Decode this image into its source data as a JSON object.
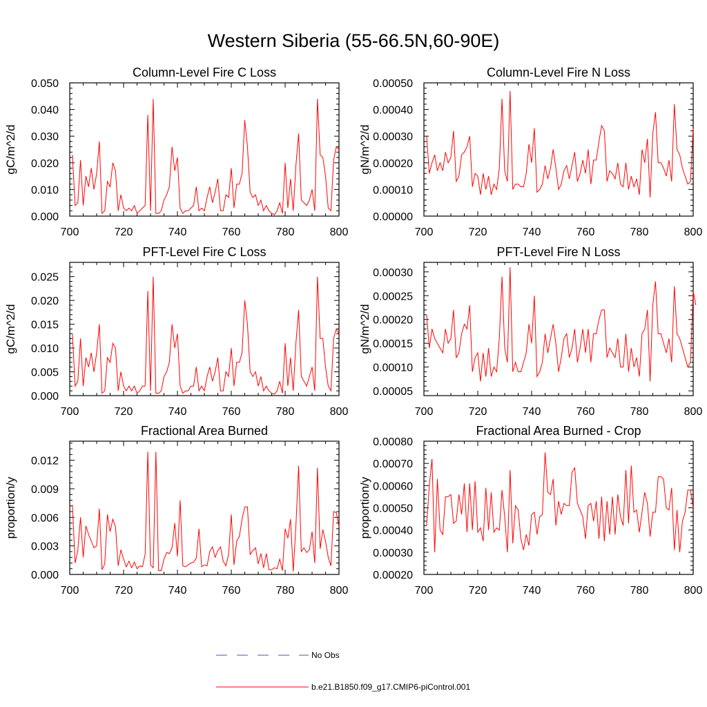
{
  "title": "Western Siberia (55-66.5N,60-90E)",
  "legend": {
    "entries": [
      {
        "label": "No Obs",
        "color": "#5050a0",
        "style": "dashed"
      },
      {
        "label": "b.e21.B1850.f09_g17.CMIP6-piControl.001",
        "color": "#ff0000",
        "style": "solid"
      }
    ]
  },
  "chart_data": [
    {
      "type": "line",
      "title": "Column-Level Fire C Loss",
      "ylabel": "gC/m^2/d",
      "xlim": [
        700,
        800
      ],
      "ylim": [
        0,
        0.05
      ],
      "xticks": [
        "700",
        "720",
        "740",
        "760",
        "780",
        "800"
      ],
      "yticks": [
        "0.000",
        "0.010",
        "0.020",
        "0.030",
        "0.040",
        "0.050"
      ],
      "series": [
        {
          "color": "#ff0000",
          "x0": 701,
          "values": [
            0.023,
            0.004,
            0.005,
            0.021,
            0.004,
            0.015,
            0.011,
            0.018,
            0.01,
            0.016,
            0.028,
            0.001,
            0.002,
            0.013,
            0.011,
            0.02,
            0.017,
            0.002,
            0.008,
            0.003,
            0.002,
            0.003,
            0.002,
            0.004,
            0.001,
            0.002,
            0.003,
            0.004,
            0.038,
            0.002,
            0.044,
            0.001,
            0.001,
            0.002,
            0.006,
            0.008,
            0.011,
            0.026,
            0.017,
            0.022,
            0.003,
            0.001,
            0.002,
            0.002,
            0.003,
            0.004,
            0.011,
            0.002,
            0.003,
            0.002,
            0.007,
            0.011,
            0.005,
            0.009,
            0.014,
            0.002,
            0.002,
            0.008,
            0.007,
            0.018,
            0.003,
            0.012,
            0.012,
            0.016,
            0.036,
            0.026,
            0.009,
            0.007,
            0.008,
            0.004,
            0.006,
            0.002,
            0.004,
            0.002,
            0.001,
            0.0005,
            0.002,
            0.005,
            0.001,
            0.02,
            0.003,
            0.014,
            0.002,
            0.019,
            0.031,
            0.006,
            0.005,
            0.004,
            0.006,
            0.01,
            0.002,
            0.044,
            0.023,
            0.022,
            0.015,
            0.003,
            0.002,
            0.021,
            0.026,
            0.025
          ]
        }
      ]
    },
    {
      "type": "line",
      "title": "Column-Level Fire N Loss",
      "ylabel": "gN/m^2/d",
      "xlim": [
        700,
        800
      ],
      "ylim": [
        0,
        0.0005
      ],
      "xticks": [
        "700",
        "720",
        "740",
        "760",
        "780",
        "800"
      ],
      "yticks": [
        "0.00000",
        "0.00010",
        "0.00020",
        "0.00030",
        "0.00040",
        "0.00050"
      ],
      "series": [
        {
          "color": "#ff0000",
          "x0": 701,
          "values": [
            0.0003,
            0.00016,
            0.0002,
            0.00023,
            0.00017,
            0.0002,
            0.00017,
            0.00024,
            0.0002,
            0.00022,
            0.00032,
            0.00013,
            0.00015,
            0.00023,
            0.00024,
            0.00026,
            0.0003,
            0.00011,
            0.00016,
            0.00015,
            8e-05,
            0.00016,
            0.0001,
            0.00015,
            8e-05,
            0.00012,
            0.0001,
            0.00018,
            0.00044,
            0.00017,
            0.00013,
            0.00047,
            0.0001,
            0.00012,
            0.00012,
            0.00011,
            0.00011,
            0.00016,
            0.00027,
            0.0002,
            0.00033,
            9e-05,
            0.0001,
            0.00012,
            0.00019,
            0.00014,
            0.00018,
            0.00025,
            0.00018,
            0.0001,
            0.00012,
            0.00017,
            0.00019,
            0.00014,
            0.00019,
            0.00024,
            0.00013,
            0.00016,
            0.00021,
            0.00016,
            0.00025,
            0.00012,
            0.00021,
            0.00021,
            0.00028,
            0.00034,
            0.00032,
            0.00013,
            0.00017,
            0.00016,
            0.00014,
            0.0002,
            0.00012,
            0.00011,
            0.0002,
            0.0001,
            0.00015,
            0.00011,
            0.00014,
            8e-05,
            0.00025,
            0.0002,
            0.00029,
            7e-05,
            0.00031,
            0.00039,
            0.0002,
            0.0002,
            0.00018,
            0.00015,
            0.00021,
            0.00013,
            0.00042,
            0.00025,
            0.00023,
            0.00018,
            0.00015,
            0.00012,
            0.00013,
            0.00033
          ]
        }
      ]
    },
    {
      "type": "line",
      "title": "PFT-Level Fire C Loss",
      "ylabel": "gC/m^2/d",
      "xlim": [
        700,
        800
      ],
      "ylim": [
        0,
        0.028
      ],
      "xticks": [
        "700",
        "720",
        "740",
        "760",
        "780",
        "800"
      ],
      "yticks": [
        "0.000",
        "0.005",
        "0.010",
        "0.015",
        "0.020",
        "0.025"
      ],
      "series": [
        {
          "color": "#ff0000",
          "x0": 701,
          "values": [
            0.013,
            0.002,
            0.003,
            0.012,
            0.002,
            0.008,
            0.006,
            0.009,
            0.005,
            0.009,
            0.015,
            0.0005,
            0.001,
            0.008,
            0.007,
            0.011,
            0.01,
            0.001,
            0.005,
            0.002,
            0.001,
            0.002,
            0.001,
            0.002,
            0.0005,
            0.001,
            0.002,
            0.002,
            0.022,
            0.001,
            0.025,
            0.0005,
            0.0005,
            0.001,
            0.004,
            0.005,
            0.007,
            0.015,
            0.01,
            0.013,
            0.002,
            0.0005,
            0.001,
            0.001,
            0.002,
            0.002,
            0.006,
            0.001,
            0.002,
            0.001,
            0.004,
            0.006,
            0.003,
            0.005,
            0.008,
            0.001,
            0.001,
            0.005,
            0.004,
            0.01,
            0.002,
            0.007,
            0.007,
            0.009,
            0.02,
            0.015,
            0.005,
            0.004,
            0.005,
            0.002,
            0.004,
            0.001,
            0.002,
            0.001,
            0.0005,
            0.0003,
            0.001,
            0.003,
            0.0005,
            0.011,
            0.002,
            0.008,
            0.001,
            0.011,
            0.018,
            0.004,
            0.003,
            0.002,
            0.004,
            0.006,
            0.001,
            0.025,
            0.012,
            0.012,
            0.006,
            0.002,
            0.001,
            0.012,
            0.014,
            0.013
          ]
        }
      ]
    },
    {
      "type": "line",
      "title": "PFT-Level Fire N Loss",
      "ylabel": "gN/m^2/d",
      "xlim": [
        700,
        800
      ],
      "ylim": [
        4e-05,
        0.00032
      ],
      "xticks": [
        "700",
        "720",
        "740",
        "760",
        "780",
        "800"
      ],
      "yticks": [
        "0.00005",
        "0.00010",
        "0.00015",
        "0.00020",
        "0.00025",
        "0.00030"
      ],
      "series": [
        {
          "color": "#ff0000",
          "x0": 701,
          "values": [
            0.00021,
            0.00014,
            0.00018,
            0.00016,
            0.00015,
            0.00014,
            0.00013,
            0.00018,
            0.00015,
            0.00016,
            0.00022,
            0.00012,
            0.00013,
            0.00017,
            0.00019,
            0.00018,
            0.00023,
            9e-05,
            0.00012,
            0.00013,
            7e-05,
            0.00013,
            8e-05,
            0.00014,
            8e-05,
            0.0001,
            9e-05,
            0.00016,
            0.00029,
            0.00014,
            0.00011,
            0.00031,
            9e-05,
            0.00011,
            9e-05,
            9e-05,
            0.00011,
            0.00013,
            0.00019,
            0.00015,
            0.00025,
            8e-05,
            9e-05,
            0.00011,
            0.00017,
            0.00013,
            0.00016,
            0.00019,
            0.00015,
            9e-05,
            0.00012,
            0.00016,
            0.00017,
            0.00012,
            0.00014,
            0.00018,
            0.00011,
            0.00014,
            0.00018,
            0.00013,
            0.00018,
            0.00011,
            0.00017,
            0.00017,
            0.0002,
            0.00022,
            0.00022,
            0.00012,
            0.00014,
            0.00013,
            0.00012,
            0.00016,
            0.0001,
            0.0001,
            0.00017,
            9e-05,
            0.00014,
            0.0001,
            0.00012,
            8e-05,
            0.00017,
            0.00018,
            0.00022,
            7e-05,
            0.00023,
            0.00028,
            0.00017,
            0.00017,
            0.00015,
            0.00013,
            0.00016,
            0.00011,
            0.00027,
            0.00017,
            0.00016,
            0.00014,
            0.00012,
            0.0001,
            0.00011,
            0.00026,
            0.00023
          ]
        }
      ]
    },
    {
      "type": "line",
      "title": "Fractional Area Burned",
      "ylabel": "proportion/y",
      "xlim": [
        700,
        800
      ],
      "ylim": [
        0,
        0.014
      ],
      "xticks": [
        "700",
        "720",
        "740",
        "760",
        "780",
        "800"
      ],
      "yticks": [
        "0.000",
        "0.003",
        "0.006",
        "0.009",
        "0.012"
      ],
      "series": [
        {
          "color": "#ff0000",
          "x0": 701,
          "values": [
            0.0073,
            0.0012,
            0.0025,
            0.006,
            0.0018,
            0.0051,
            0.0042,
            0.0035,
            0.0028,
            0.003,
            0.0069,
            0.0005,
            0.0011,
            0.0063,
            0.0045,
            0.0058,
            0.005,
            0.0009,
            0.0026,
            0.0016,
            0.0008,
            0.0014,
            0.0007,
            0.0013,
            0.0006,
            0.0009,
            0.0008,
            0.0021,
            0.0129,
            0.001,
            0.0007,
            0.0129,
            0.0004,
            0.0004,
            0.0016,
            0.0023,
            0.0022,
            0.0028,
            0.0054,
            0.0019,
            0.0078,
            0.0009,
            0.0008,
            0.001,
            0.0012,
            0.0013,
            0.0017,
            0.0048,
            0.0008,
            0.001,
            0.0009,
            0.0024,
            0.0029,
            0.0018,
            0.0025,
            0.0029,
            0.0014,
            0.0009,
            0.0021,
            0.0063,
            0.001,
            0.0035,
            0.004,
            0.0058,
            0.0071,
            0.0071,
            0.0021,
            0.0025,
            0.0028,
            0.0011,
            0.0022,
            0.0007,
            0.0022,
            0.0005,
            0.0005,
            0.0007,
            0.0006,
            0.0016,
            0.0004,
            0.0048,
            0.0038,
            0.0058,
            0.0003,
            0.0051,
            0.0114,
            0.0024,
            0.0028,
            0.0023,
            0.0026,
            0.0045,
            0.0012,
            0.0112,
            0.0027,
            0.0047,
            0.0035,
            0.0018,
            0.0009,
            0.0066,
            0.0065,
            0.005
          ]
        }
      ]
    },
    {
      "type": "line",
      "title": "Fractional Area Burned - Crop",
      "ylabel": "proportion/y",
      "xlim": [
        700,
        800
      ],
      "ylim": [
        0.0002,
        0.0008
      ],
      "xticks": [
        "700",
        "720",
        "740",
        "760",
        "780",
        "800"
      ],
      "yticks": [
        "0.00020",
        "0.00030",
        "0.00040",
        "0.00050",
        "0.00060",
        "0.00070",
        "0.00080"
      ],
      "series": [
        {
          "color": "#ff0000",
          "x0": 701,
          "values": [
            0.00042,
            0.0006,
            0.00072,
            0.0003,
            0.00063,
            0.0004,
            0.00038,
            0.00055,
            0.00055,
            0.00056,
            0.00043,
            0.00044,
            0.00056,
            0.00047,
            0.00061,
            0.00039,
            0.00061,
            0.0004,
            0.00062,
            0.00039,
            0.00041,
            0.00035,
            0.00059,
            0.0004,
            0.00057,
            0.00039,
            0.00041,
            0.0004,
            0.00058,
            0.00046,
            0.0003,
            0.00067,
            0.00034,
            0.00051,
            0.00049,
            0.00036,
            0.00031,
            0.00038,
            0.00033,
            0.00047,
            0.00048,
            0.00038,
            0.00046,
            0.00047,
            0.00075,
            0.00057,
            0.00056,
            0.00063,
            0.00042,
            0.00053,
            0.00047,
            0.00052,
            0.00051,
            0.00051,
            0.00066,
            0.00068,
            0.00052,
            0.00049,
            0.00046,
            0.00036,
            0.00051,
            0.00052,
            0.00044,
            0.00053,
            0.00036,
            0.00055,
            0.00035,
            0.00053,
            0.00038,
            0.00055,
            0.00038,
            0.00056,
            0.00046,
            0.00042,
            0.00067,
            0.00043,
            0.00069,
            0.00048,
            0.00049,
            0.00039,
            0.00048,
            0.00057,
            0.00052,
            0.00037,
            0.00048,
            0.00048,
            0.00064,
            0.00064,
            0.00063,
            0.0005,
            0.00049,
            0.00059,
            0.00031,
            0.00049,
            0.0003,
            0.00044,
            0.00048,
            0.00058,
            0.00058,
            0.0005
          ]
        }
      ]
    }
  ]
}
